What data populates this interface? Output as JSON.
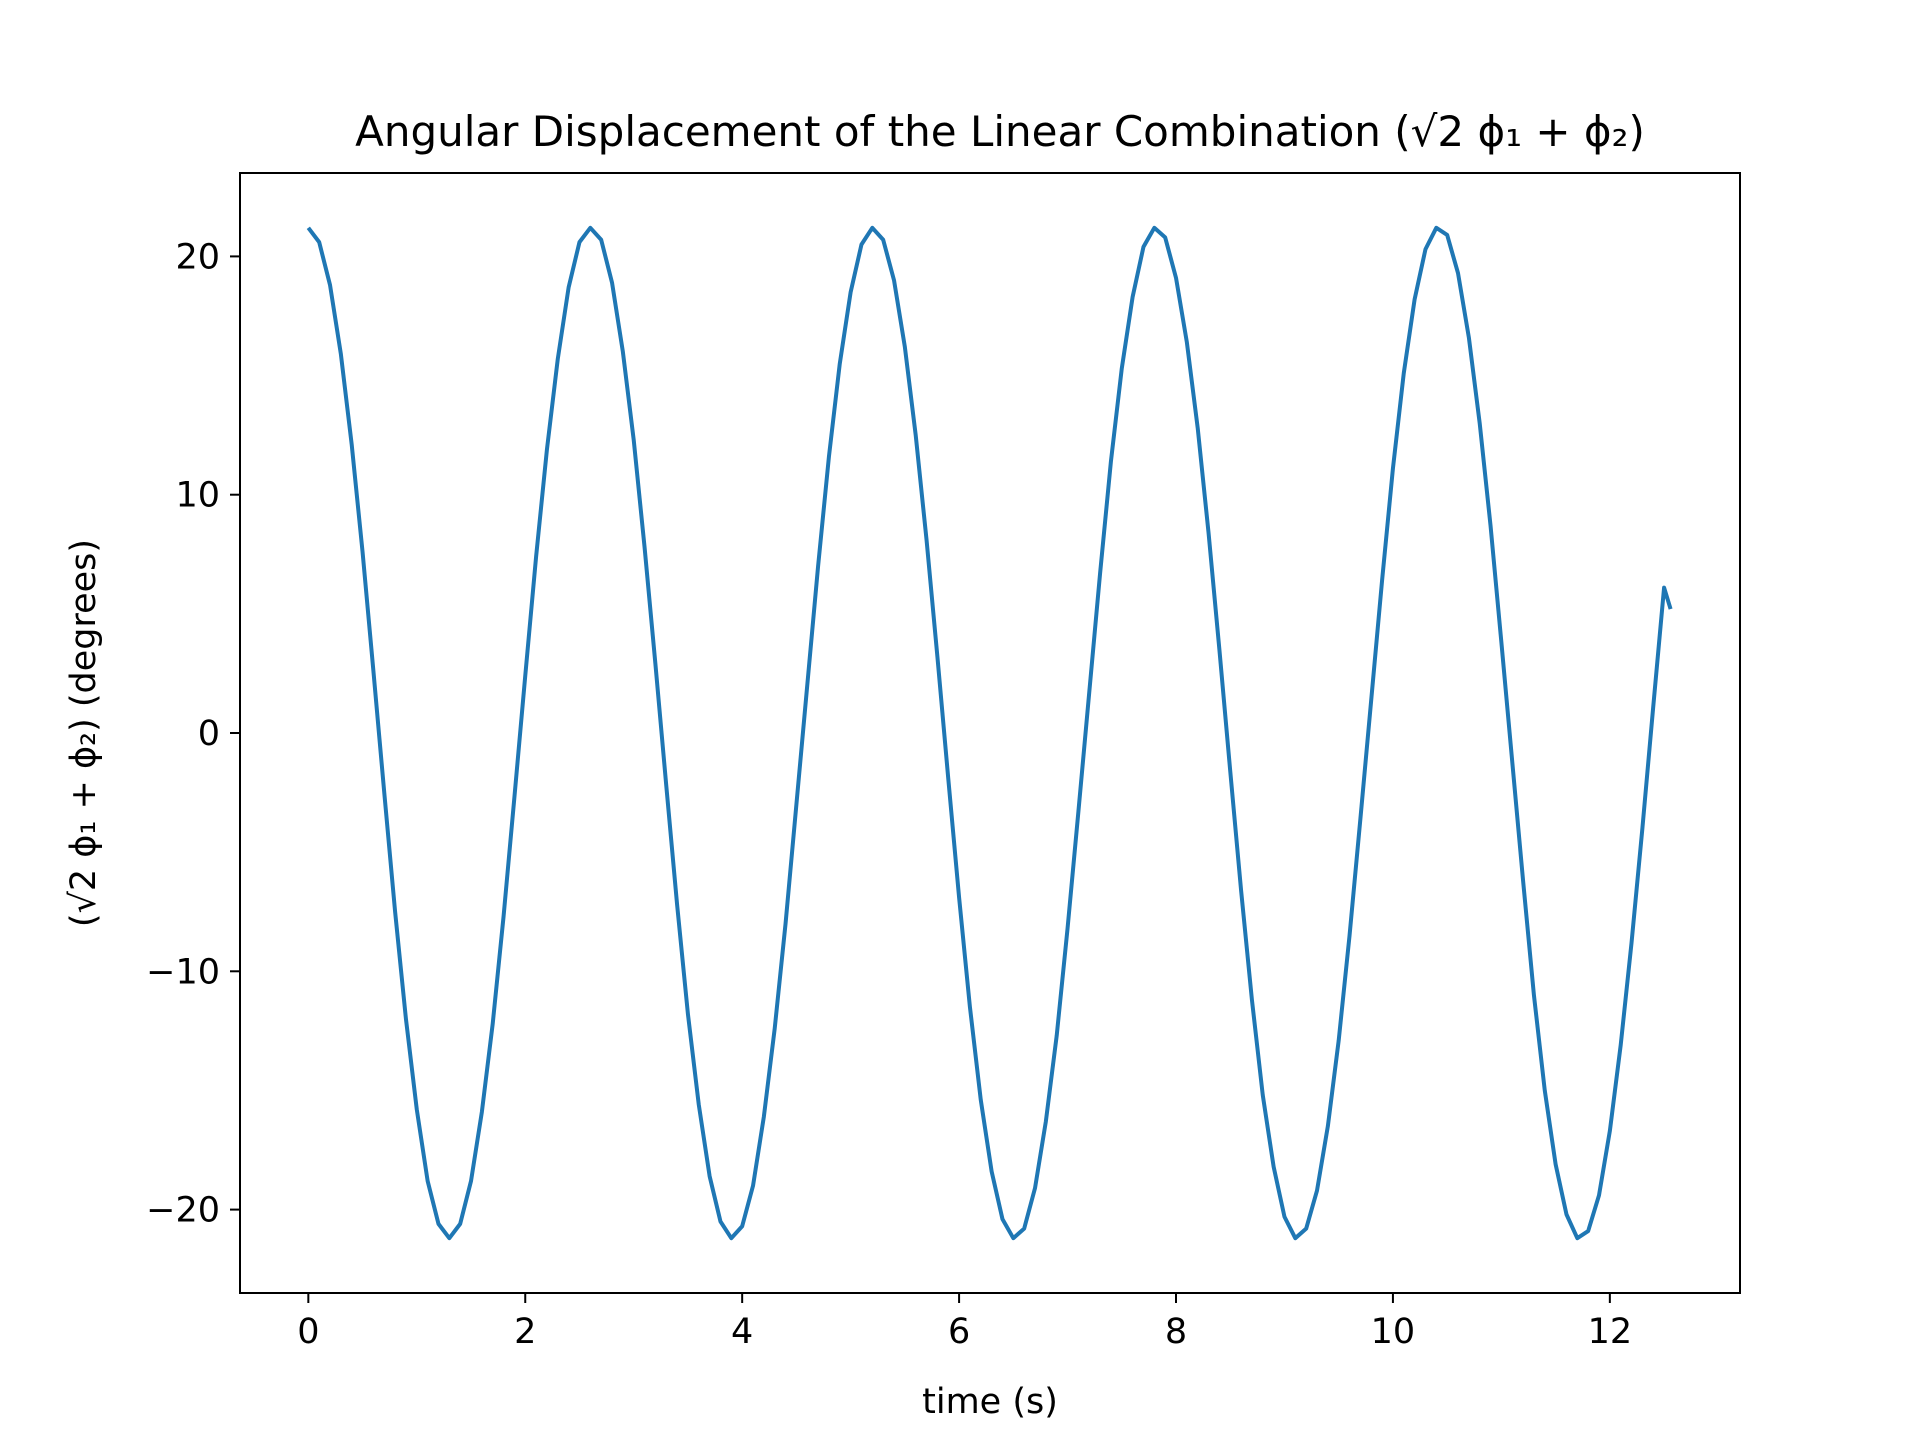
{
  "chart_data": {
    "type": "line",
    "title": "Angular Displacement of the Linear Combination (√2 ϕ₁ + ϕ₂)",
    "xlabel": "time (s)",
    "ylabel": "(√2 ϕ₁ + ϕ₂) (degrees)",
    "xlim": [
      -0.63,
      13.2
    ],
    "ylim": [
      -23.5,
      23.5
    ],
    "xticks": [
      0,
      2,
      4,
      6,
      8,
      10,
      12
    ],
    "xtick_labels": [
      "0",
      "2",
      "4",
      "6",
      "8",
      "10",
      "12"
    ],
    "yticks": [
      -20,
      -10,
      0,
      10,
      20
    ],
    "ytick_labels": [
      "−20",
      "−10",
      "0",
      "10",
      "20"
    ],
    "grid": false,
    "line_color": "#1f77b4",
    "series": [
      {
        "x": [
          0.0,
          0.1,
          0.2,
          0.3,
          0.4,
          0.5,
          0.6,
          0.7,
          0.8,
          0.9,
          1.0,
          1.1,
          1.2,
          1.3,
          1.4,
          1.5,
          1.6,
          1.7,
          1.8,
          1.9,
          2.0,
          2.1,
          2.2,
          2.3,
          2.4,
          2.5,
          2.6,
          2.7,
          2.8,
          2.9,
          3.0,
          3.1,
          3.2,
          3.3,
          3.4,
          3.5,
          3.6,
          3.7,
          3.8,
          3.9,
          4.0,
          4.1,
          4.2,
          4.3,
          4.4,
          4.5,
          4.6,
          4.7,
          4.8,
          4.9,
          5.0,
          5.1,
          5.2,
          5.3,
          5.4,
          5.5,
          5.6,
          5.7,
          5.8,
          5.9,
          6.0,
          6.1,
          6.2,
          6.3,
          6.4,
          6.5,
          6.6,
          6.7,
          6.8,
          6.9,
          7.0,
          7.1,
          7.2,
          7.3,
          7.4,
          7.5,
          7.6,
          7.7,
          7.8,
          7.9,
          8.0,
          8.1,
          8.2,
          8.3,
          8.4,
          8.5,
          8.6,
          8.7,
          8.8,
          8.9,
          9.0,
          9.1,
          9.2,
          9.3,
          9.4,
          9.5,
          9.6,
          9.7,
          9.8,
          9.9,
          10.0,
          10.1,
          10.2,
          10.3,
          10.4,
          10.5,
          10.6,
          10.7,
          10.8,
          10.9,
          11.0,
          11.1,
          11.2,
          11.3,
          11.4,
          11.5,
          11.6,
          11.7,
          11.8,
          11.9,
          12.0,
          12.1,
          12.2,
          12.3,
          12.4,
          12.5,
          12.56
        ],
        "y": [
          21.2,
          20.6,
          18.8,
          15.9,
          12.1,
          7.6,
          2.6,
          -2.5,
          -7.5,
          -12.0,
          -15.8,
          -18.8,
          -20.6,
          -21.2,
          -20.6,
          -18.8,
          -15.9,
          -12.2,
          -7.7,
          -2.7,
          2.4,
          7.4,
          11.9,
          15.7,
          18.7,
          20.6,
          21.2,
          20.7,
          18.9,
          16.0,
          12.3,
          7.8,
          2.9,
          -2.2,
          -7.2,
          -11.8,
          -15.6,
          -18.6,
          -20.5,
          -21.2,
          -20.7,
          -19.0,
          -16.1,
          -12.4,
          -8.0,
          -3.0,
          2.0,
          7.0,
          11.6,
          15.5,
          18.5,
          20.5,
          21.2,
          20.7,
          19.0,
          16.2,
          12.5,
          8.1,
          3.2,
          -1.9,
          -6.9,
          -11.5,
          -15.4,
          -18.4,
          -20.4,
          -21.2,
          -20.8,
          -19.1,
          -16.3,
          -12.7,
          -8.2,
          -3.3,
          1.7,
          6.7,
          11.4,
          15.3,
          18.3,
          20.4,
          21.2,
          20.8,
          19.1,
          16.4,
          12.8,
          8.4,
          3.5,
          -1.6,
          -6.6,
          -11.2,
          -15.2,
          -18.2,
          -20.3,
          -21.2,
          -20.8,
          -19.2,
          -16.5,
          -12.9,
          -8.5,
          -3.6,
          1.4,
          6.4,
          11.1,
          15.1,
          18.2,
          20.3,
          21.2,
          20.9,
          19.3,
          16.6,
          13.0,
          8.7,
          3.8,
          -1.2,
          -6.2,
          -11.0,
          -15.0,
          -18.1,
          -20.2,
          -21.2,
          -20.9,
          -19.4,
          -16.7,
          -13.1,
          -8.8,
          -4.0,
          1.1,
          6.1,
          5.2
        ]
      }
    ]
  }
}
